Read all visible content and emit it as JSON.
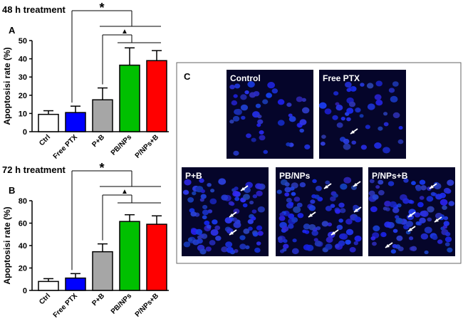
{
  "chart_data": [
    {
      "type": "bar",
      "title": "48 h treatment",
      "panel": "A",
      "y_label": "Apoptosisi rate (%)",
      "categories": [
        "Ctrl",
        "Free PTX",
        "P+B",
        "PB/NPs",
        "P/NPs+B"
      ],
      "values": [
        9.5,
        10.5,
        17.5,
        36.5,
        39
      ],
      "errors": [
        2,
        3.5,
        6.5,
        9.5,
        5.5
      ],
      "colors": [
        "#ffffff",
        "#0000ff",
        "#a6a6a6",
        "#00c000",
        "#ff0000"
      ],
      "ylim": [
        0,
        50
      ],
      "yticks": [
        0,
        10,
        20,
        30,
        40,
        50
      ],
      "annotations": [
        "*",
        "▲"
      ]
    },
    {
      "type": "bar",
      "title": "72 h treatment",
      "panel": "B",
      "y_label": "Apoptosisi rate (%)",
      "categories": [
        "Ctrl",
        "Free PTX",
        "P+B",
        "PB/NPs",
        "P/NPs+B"
      ],
      "values": [
        8,
        11,
        34.5,
        61.5,
        59
      ],
      "errors": [
        2.5,
        4,
        7,
        6,
        7.5
      ],
      "colors": [
        "#ffffff",
        "#0000ff",
        "#a6a6a6",
        "#00c000",
        "#ff0000"
      ],
      "ylim": [
        0,
        80
      ],
      "yticks": [
        0,
        20,
        40,
        60,
        80
      ],
      "annotations": [
        "*",
        "▲"
      ]
    }
  ],
  "panel_c": {
    "label": "C",
    "images": [
      {
        "label": "Control"
      },
      {
        "label": "Free PTX"
      },
      {
        "label": "P+B"
      },
      {
        "label": "PB/NPs"
      },
      {
        "label": "P/NPs+B"
      }
    ]
  }
}
